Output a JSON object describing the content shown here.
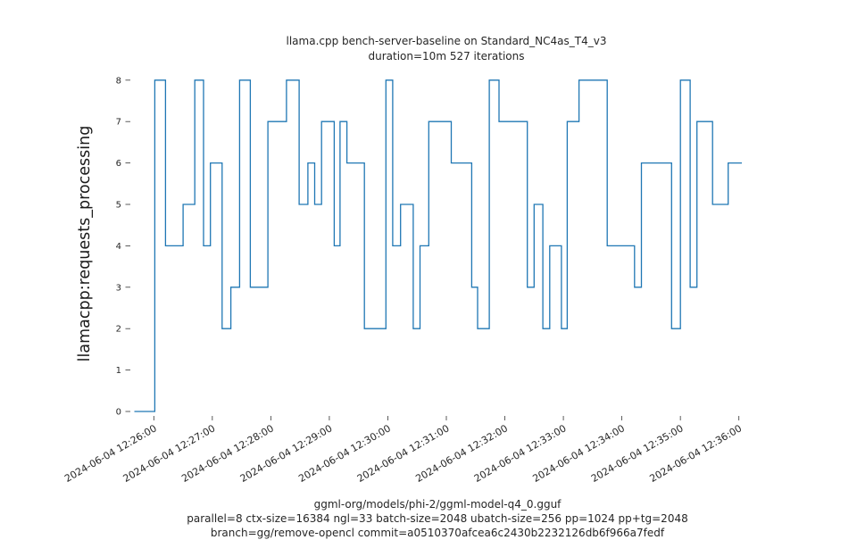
{
  "chart_data": {
    "type": "line",
    "step": true,
    "title": "llama.cpp bench-server-baseline on Standard_NC4as_T4_v3",
    "subtitle": "duration=10m 527 iterations",
    "ylabel": "llamacpp:requests_processing",
    "xlabel": "",
    "captions": [
      "ggml-org/models/phi-2/ggml-model-q4_0.gguf",
      "parallel=8 ctx-size=16384 ngl=33 batch-size=2048 ubatch-size=256 pp=1024 pp+tg=2048",
      "branch=gg/remove-opencl commit=a0510370afcea6c2430b2232126db6f966a7fedf"
    ],
    "line_color": "#1f77b4",
    "tick_color": "#333333",
    "label_color": "#262626",
    "grid": false,
    "legend": "none",
    "ylim": [
      0,
      8
    ],
    "y_ticks": [
      0,
      1,
      2,
      3,
      4,
      5,
      6,
      7,
      8
    ],
    "x_tick_labels": [
      "2024-06-04 12:26:00",
      "2024-06-04 12:27:00",
      "2024-06-04 12:28:00",
      "2024-06-04 12:29:00",
      "2024-06-04 12:30:00",
      "2024-06-04 12:31:00",
      "2024-06-04 12:32:00",
      "2024-06-04 12:33:00",
      "2024-06-04 12:34:00",
      "2024-06-04 12:35:00",
      "2024-06-04 12:36:00"
    ],
    "x_tick_seconds": [
      0,
      60,
      120,
      180,
      240,
      300,
      360,
      420,
      480,
      540,
      600
    ],
    "steps": [
      [
        -20,
        0
      ],
      [
        1,
        8
      ],
      [
        12,
        4
      ],
      [
        30,
        5
      ],
      [
        42,
        8
      ],
      [
        51,
        4
      ],
      [
        58,
        6
      ],
      [
        70,
        2
      ],
      [
        79,
        3
      ],
      [
        88,
        8
      ],
      [
        99,
        3
      ],
      [
        117,
        7
      ],
      [
        136,
        8
      ],
      [
        149,
        5
      ],
      [
        158,
        6
      ],
      [
        165,
        5
      ],
      [
        172,
        7
      ],
      [
        185,
        4
      ],
      [
        191,
        7
      ],
      [
        198,
        6
      ],
      [
        216,
        2
      ],
      [
        238,
        8
      ],
      [
        245,
        4
      ],
      [
        253,
        5
      ],
      [
        266,
        2
      ],
      [
        273,
        4
      ],
      [
        282,
        7
      ],
      [
        305,
        6
      ],
      [
        326,
        3
      ],
      [
        332,
        2
      ],
      [
        344,
        8
      ],
      [
        354,
        7
      ],
      [
        383,
        3
      ],
      [
        390,
        5
      ],
      [
        399,
        2
      ],
      [
        406,
        4
      ],
      [
        418,
        2
      ],
      [
        424,
        7
      ],
      [
        436,
        8
      ],
      [
        465,
        4
      ],
      [
        493,
        3
      ],
      [
        500,
        6
      ],
      [
        531,
        2
      ],
      [
        540,
        8
      ],
      [
        550,
        3
      ],
      [
        557,
        7
      ],
      [
        573,
        5
      ],
      [
        589,
        6
      ]
    ],
    "t_end": 603
  }
}
